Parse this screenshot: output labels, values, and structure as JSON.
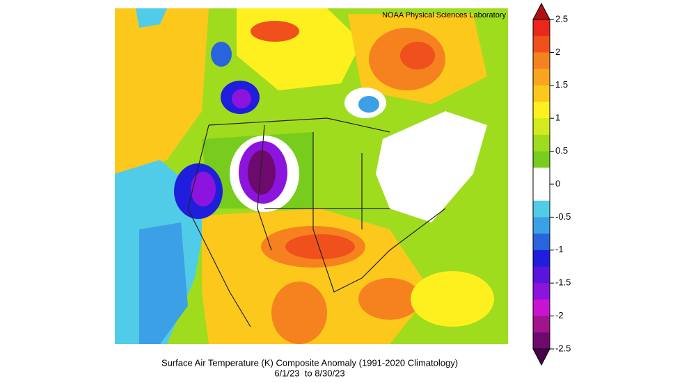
{
  "map": {
    "credit": "NOAA Physical Sciences Laboratory",
    "title": "Surface Air Temperature (K) Composite Anomaly (1991-2020 Climatology)",
    "subtitle": "6/1/23  to 8/30/23"
  },
  "colorbar": {
    "lim": [
      -2.5,
      2.5
    ],
    "ticks": [
      2.5,
      2,
      1.5,
      1,
      0.5,
      0,
      -0.5,
      -1,
      -1.5,
      -2,
      -2.5
    ],
    "over_color": "#b01010",
    "under_color": "#4a0048",
    "colors": [
      "#e8281c",
      "#f0501c",
      "#f5821f",
      "#f9a61e",
      "#fcc81c",
      "#fdf01e",
      "#d2ea1e",
      "#a0dc1e",
      "#78cc1e",
      "#ffffff",
      "#ffffff",
      "#50cce8",
      "#3ca0e6",
      "#2864dc",
      "#1e1edc",
      "#5a14dc",
      "#8c14dc",
      "#c814d2",
      "#a0148c",
      "#6e0a6e"
    ]
  }
}
